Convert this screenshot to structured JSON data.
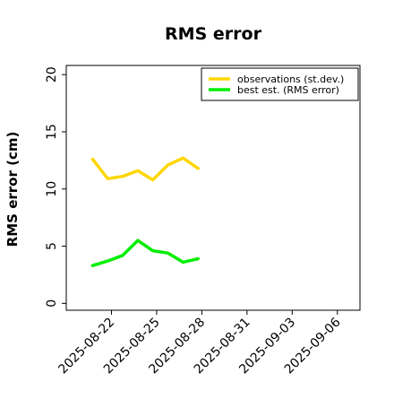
{
  "chart_data": {
    "type": "line",
    "title": "RMS error",
    "xlabel": "",
    "ylabel": "RMS error (cm)",
    "xlim": [
      "2025-08-19T00:00",
      "2025-09-07T12:00"
    ],
    "ylim": [
      -0.6,
      20.8
    ],
    "xticks": [
      "2025-08-22",
      "2025-08-25",
      "2025-08-28",
      "2025-08-31",
      "2025-09-03",
      "2025-09-06"
    ],
    "yticks": [
      0,
      5,
      10,
      15,
      20
    ],
    "highlight_tick": "2025-08-28",
    "highlight_color": "#228B22",
    "grid": false,
    "legend_position": "top-right",
    "x": [
      "2025-08-20T18:00",
      "2025-08-21T18:00",
      "2025-08-22T18:00",
      "2025-08-23T18:00",
      "2025-08-24T18:00",
      "2025-08-25T18:00",
      "2025-08-26T18:00",
      "2025-08-27T18:00"
    ],
    "series": [
      {
        "name": "observations (st.dev.)",
        "color": "#FFD700",
        "values": [
          12.6,
          10.9,
          11.1,
          11.6,
          10.8,
          12.1,
          12.7,
          11.8
        ]
      },
      {
        "name": "best est. (RMS error)",
        "color": "#00EE00",
        "values": [
          3.3,
          3.7,
          4.2,
          5.5,
          4.6,
          4.4,
          3.6,
          3.9
        ]
      }
    ]
  }
}
